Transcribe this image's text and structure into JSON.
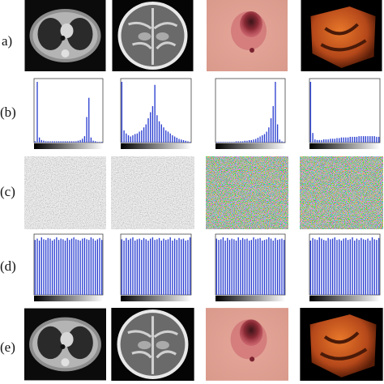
{
  "rows": [
    {
      "label": "a)"
    },
    {
      "label": "(b)"
    },
    {
      "label": "(c)"
    },
    {
      "label": "(d)"
    },
    {
      "label": "(e)"
    }
  ],
  "histograms": {
    "b": [
      [
        2,
        95,
        8,
        4,
        3,
        2,
        2,
        2,
        2,
        2,
        2,
        2,
        2,
        2,
        2,
        2,
        2,
        2,
        2,
        2,
        3,
        4,
        6,
        10,
        40,
        70,
        8,
        3,
        2,
        1,
        1,
        1
      ],
      [
        100,
        20,
        15,
        12,
        10,
        12,
        14,
        15,
        18,
        20,
        25,
        30,
        40,
        50,
        60,
        95,
        45,
        35,
        30,
        25,
        20,
        18,
        15,
        12,
        10,
        8,
        6,
        5,
        4,
        3,
        2,
        1
      ],
      [
        1,
        1,
        1,
        1,
        1,
        1,
        1,
        1,
        1,
        2,
        2,
        2,
        2,
        3,
        3,
        4,
        4,
        5,
        6,
        8,
        10,
        12,
        14,
        18,
        25,
        40,
        60,
        100,
        30,
        5,
        2,
        1
      ],
      [
        95,
        15,
        5,
        4,
        4,
        4,
        5,
        5,
        5,
        6,
        6,
        6,
        7,
        7,
        8,
        8,
        8,
        8,
        9,
        9,
        9,
        9,
        10,
        10,
        10,
        10,
        10,
        10,
        10,
        10,
        9,
        9
      ]
    ],
    "d": [
      [
        86,
        88,
        85,
        90,
        87,
        86,
        89,
        88,
        85,
        87,
        90,
        86,
        88,
        87,
        85,
        89,
        86,
        88,
        90,
        87,
        86,
        85,
        88,
        89,
        87,
        86,
        90,
        88,
        85,
        87,
        89,
        86
      ],
      [
        87,
        85,
        89,
        86,
        88,
        90,
        85,
        87,
        88,
        86,
        89,
        87,
        85,
        88,
        90,
        86,
        87,
        89,
        85,
        88,
        86,
        87,
        90,
        85,
        88,
        86,
        89,
        87,
        88,
        85,
        86,
        90
      ],
      [
        88,
        86,
        87,
        90,
        85,
        89,
        86,
        88,
        87,
        85,
        90,
        86,
        89,
        87,
        88,
        85,
        86,
        90,
        87,
        88,
        89,
        85,
        86,
        87,
        90,
        88,
        85,
        89,
        86,
        87,
        88,
        86
      ],
      [
        85,
        89,
        87,
        86,
        90,
        88,
        86,
        85,
        89,
        87,
        88,
        90,
        86,
        87,
        85,
        88,
        89,
        86,
        87,
        90,
        85,
        88,
        86,
        89,
        87,
        86,
        88,
        85,
        90,
        87,
        86,
        89
      ]
    ]
  }
}
